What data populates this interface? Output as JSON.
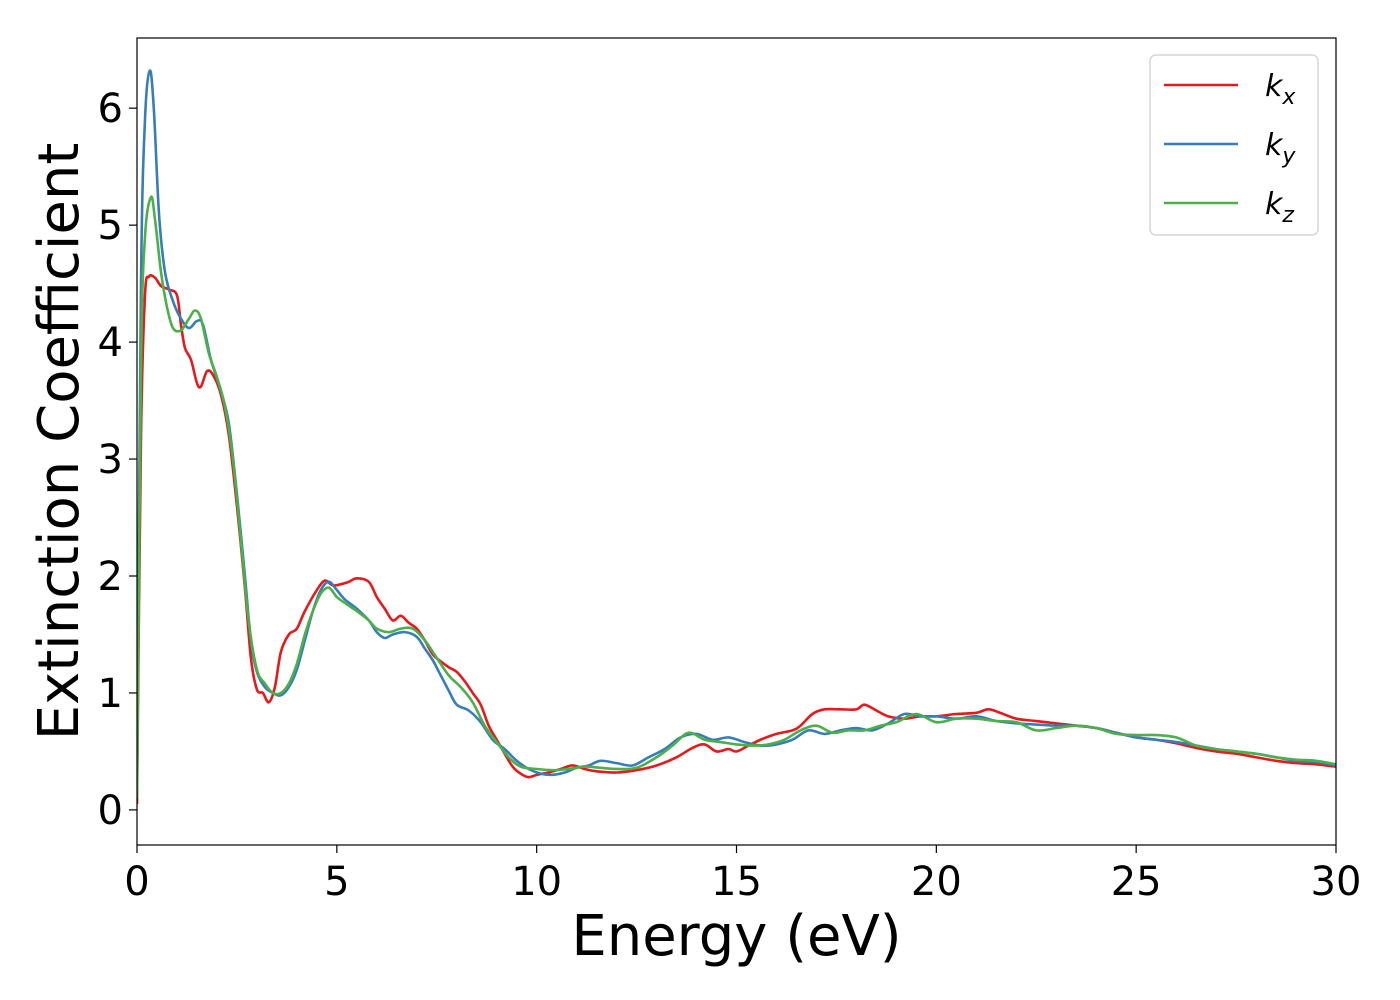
{
  "chart_data": {
    "type": "line",
    "title": "",
    "xlabel": "Energy (eV)",
    "ylabel": "Extinction Coefficient",
    "xlim": [
      0,
      30
    ],
    "ylim": [
      -0.3,
      6.6
    ],
    "xticks": [
      0,
      5,
      10,
      15,
      20,
      25,
      30
    ],
    "yticks": [
      0,
      1,
      2,
      3,
      4,
      5,
      6
    ],
    "grid": false,
    "legend_position": "top-right",
    "series": [
      {
        "name": "k",
        "subscript": "x",
        "color": "#e41a1c",
        "points": [
          [
            0,
            0.05
          ],
          [
            0.1,
            3.2
          ],
          [
            0.2,
            4.4
          ],
          [
            0.3,
            4.56
          ],
          [
            0.45,
            4.55
          ],
          [
            0.6,
            4.48
          ],
          [
            0.8,
            4.45
          ],
          [
            1.0,
            4.4
          ],
          [
            1.1,
            4.15
          ],
          [
            1.2,
            3.95
          ],
          [
            1.35,
            3.85
          ],
          [
            1.5,
            3.65
          ],
          [
            1.6,
            3.62
          ],
          [
            1.75,
            3.75
          ],
          [
            1.9,
            3.72
          ],
          [
            2.1,
            3.55
          ],
          [
            2.3,
            3.2
          ],
          [
            2.5,
            2.6
          ],
          [
            2.7,
            1.9
          ],
          [
            2.85,
            1.3
          ],
          [
            3.0,
            1.03
          ],
          [
            3.15,
            1.0
          ],
          [
            3.3,
            0.92
          ],
          [
            3.45,
            1.05
          ],
          [
            3.6,
            1.35
          ],
          [
            3.8,
            1.5
          ],
          [
            4.0,
            1.55
          ],
          [
            4.2,
            1.7
          ],
          [
            4.5,
            1.88
          ],
          [
            4.7,
            1.96
          ],
          [
            4.9,
            1.92
          ],
          [
            5.1,
            1.93
          ],
          [
            5.3,
            1.95
          ],
          [
            5.5,
            1.98
          ],
          [
            5.8,
            1.95
          ],
          [
            6.0,
            1.82
          ],
          [
            6.2,
            1.72
          ],
          [
            6.4,
            1.62
          ],
          [
            6.6,
            1.66
          ],
          [
            6.8,
            1.6
          ],
          [
            7.0,
            1.55
          ],
          [
            7.2,
            1.45
          ],
          [
            7.4,
            1.33
          ],
          [
            7.6,
            1.27
          ],
          [
            7.8,
            1.22
          ],
          [
            8.0,
            1.18
          ],
          [
            8.2,
            1.1
          ],
          [
            8.4,
            1.0
          ],
          [
            8.6,
            0.9
          ],
          [
            8.8,
            0.72
          ],
          [
            9.0,
            0.6
          ],
          [
            9.2,
            0.48
          ],
          [
            9.4,
            0.37
          ],
          [
            9.6,
            0.31
          ],
          [
            9.8,
            0.28
          ],
          [
            10.0,
            0.3
          ],
          [
            10.3,
            0.32
          ],
          [
            10.6,
            0.35
          ],
          [
            10.9,
            0.38
          ],
          [
            11.2,
            0.35
          ],
          [
            11.5,
            0.33
          ],
          [
            12.0,
            0.32
          ],
          [
            12.5,
            0.34
          ],
          [
            13.0,
            0.38
          ],
          [
            13.5,
            0.45
          ],
          [
            13.9,
            0.53
          ],
          [
            14.2,
            0.56
          ],
          [
            14.5,
            0.5
          ],
          [
            14.8,
            0.52
          ],
          [
            15.0,
            0.5
          ],
          [
            15.3,
            0.55
          ],
          [
            15.6,
            0.6
          ],
          [
            16.0,
            0.65
          ],
          [
            16.4,
            0.68
          ],
          [
            16.6,
            0.72
          ],
          [
            16.9,
            0.82
          ],
          [
            17.2,
            0.86
          ],
          [
            17.6,
            0.86
          ],
          [
            18.0,
            0.86
          ],
          [
            18.2,
            0.9
          ],
          [
            18.5,
            0.85
          ],
          [
            18.8,
            0.8
          ],
          [
            19.2,
            0.78
          ],
          [
            19.6,
            0.8
          ],
          [
            20.0,
            0.8
          ],
          [
            20.5,
            0.82
          ],
          [
            21.0,
            0.83
          ],
          [
            21.3,
            0.86
          ],
          [
            21.6,
            0.83
          ],
          [
            22.0,
            0.78
          ],
          [
            22.5,
            0.76
          ],
          [
            23.0,
            0.74
          ],
          [
            23.5,
            0.72
          ],
          [
            24.0,
            0.7
          ],
          [
            24.5,
            0.66
          ],
          [
            25.0,
            0.62
          ],
          [
            25.5,
            0.6
          ],
          [
            26.0,
            0.57
          ],
          [
            26.5,
            0.53
          ],
          [
            27.0,
            0.5
          ],
          [
            27.5,
            0.48
          ],
          [
            28.0,
            0.45
          ],
          [
            28.5,
            0.42
          ],
          [
            29.0,
            0.4
          ],
          [
            29.5,
            0.39
          ],
          [
            30.0,
            0.37
          ]
        ]
      },
      {
        "name": "k",
        "subscript": "y",
        "color": "#377eb8",
        "points": [
          [
            0,
            0.2
          ],
          [
            0.1,
            4.5
          ],
          [
            0.2,
            5.9
          ],
          [
            0.32,
            6.32
          ],
          [
            0.42,
            6.0
          ],
          [
            0.55,
            5.1
          ],
          [
            0.7,
            4.6
          ],
          [
            0.9,
            4.35
          ],
          [
            1.1,
            4.2
          ],
          [
            1.3,
            4.12
          ],
          [
            1.5,
            4.18
          ],
          [
            1.65,
            4.15
          ],
          [
            1.85,
            3.85
          ],
          [
            2.1,
            3.58
          ],
          [
            2.3,
            3.3
          ],
          [
            2.5,
            2.7
          ],
          [
            2.7,
            2.0
          ],
          [
            2.85,
            1.45
          ],
          [
            3.0,
            1.18
          ],
          [
            3.2,
            1.05
          ],
          [
            3.4,
            1.0
          ],
          [
            3.6,
            0.98
          ],
          [
            3.8,
            1.05
          ],
          [
            4.0,
            1.2
          ],
          [
            4.2,
            1.45
          ],
          [
            4.4,
            1.7
          ],
          [
            4.6,
            1.88
          ],
          [
            4.8,
            1.95
          ],
          [
            5.0,
            1.88
          ],
          [
            5.2,
            1.8
          ],
          [
            5.5,
            1.72
          ],
          [
            5.8,
            1.62
          ],
          [
            6.0,
            1.52
          ],
          [
            6.2,
            1.47
          ],
          [
            6.4,
            1.5
          ],
          [
            6.7,
            1.52
          ],
          [
            7.0,
            1.48
          ],
          [
            7.2,
            1.38
          ],
          [
            7.4,
            1.28
          ],
          [
            7.6,
            1.15
          ],
          [
            7.8,
            1.02
          ],
          [
            8.0,
            0.9
          ],
          [
            8.3,
            0.85
          ],
          [
            8.6,
            0.75
          ],
          [
            8.9,
            0.6
          ],
          [
            9.2,
            0.52
          ],
          [
            9.5,
            0.42
          ],
          [
            9.8,
            0.35
          ],
          [
            10.1,
            0.31
          ],
          [
            10.4,
            0.3
          ],
          [
            10.7,
            0.32
          ],
          [
            11.0,
            0.36
          ],
          [
            11.3,
            0.38
          ],
          [
            11.6,
            0.42
          ],
          [
            12.0,
            0.4
          ],
          [
            12.4,
            0.38
          ],
          [
            12.8,
            0.45
          ],
          [
            13.2,
            0.52
          ],
          [
            13.6,
            0.62
          ],
          [
            14.0,
            0.65
          ],
          [
            14.4,
            0.6
          ],
          [
            14.8,
            0.62
          ],
          [
            15.2,
            0.58
          ],
          [
            15.6,
            0.55
          ],
          [
            16.0,
            0.56
          ],
          [
            16.4,
            0.6
          ],
          [
            16.8,
            0.68
          ],
          [
            17.2,
            0.65
          ],
          [
            17.6,
            0.68
          ],
          [
            18.0,
            0.7
          ],
          [
            18.4,
            0.68
          ],
          [
            18.8,
            0.74
          ],
          [
            19.2,
            0.82
          ],
          [
            19.6,
            0.8
          ],
          [
            20.0,
            0.8
          ],
          [
            20.5,
            0.78
          ],
          [
            21.0,
            0.8
          ],
          [
            21.5,
            0.76
          ],
          [
            22.0,
            0.74
          ],
          [
            22.5,
            0.73
          ],
          [
            23.0,
            0.72
          ],
          [
            23.5,
            0.72
          ],
          [
            24.0,
            0.7
          ],
          [
            24.5,
            0.66
          ],
          [
            25.0,
            0.62
          ],
          [
            25.5,
            0.6
          ],
          [
            26.0,
            0.58
          ],
          [
            26.5,
            0.55
          ],
          [
            27.0,
            0.52
          ],
          [
            27.5,
            0.5
          ],
          [
            28.0,
            0.48
          ],
          [
            28.5,
            0.45
          ],
          [
            29.0,
            0.42
          ],
          [
            29.5,
            0.41
          ],
          [
            30.0,
            0.38
          ]
        ]
      },
      {
        "name": "k",
        "subscript": "z",
        "color": "#4daf4a",
        "points": [
          [
            0,
            0.1
          ],
          [
            0.1,
            3.8
          ],
          [
            0.2,
            4.9
          ],
          [
            0.35,
            5.24
          ],
          [
            0.45,
            5.05
          ],
          [
            0.6,
            4.6
          ],
          [
            0.75,
            4.3
          ],
          [
            0.9,
            4.12
          ],
          [
            1.1,
            4.1
          ],
          [
            1.3,
            4.2
          ],
          [
            1.45,
            4.27
          ],
          [
            1.6,
            4.2
          ],
          [
            1.8,
            3.9
          ],
          [
            2.0,
            3.7
          ],
          [
            2.2,
            3.45
          ],
          [
            2.4,
            3.0
          ],
          [
            2.6,
            2.3
          ],
          [
            2.8,
            1.6
          ],
          [
            3.0,
            1.2
          ],
          [
            3.2,
            1.08
          ],
          [
            3.4,
            1.0
          ],
          [
            3.6,
            1.0
          ],
          [
            3.8,
            1.08
          ],
          [
            4.0,
            1.25
          ],
          [
            4.2,
            1.5
          ],
          [
            4.4,
            1.7
          ],
          [
            4.6,
            1.85
          ],
          [
            4.8,
            1.9
          ],
          [
            5.0,
            1.82
          ],
          [
            5.2,
            1.77
          ],
          [
            5.5,
            1.7
          ],
          [
            5.8,
            1.62
          ],
          [
            6.0,
            1.55
          ],
          [
            6.3,
            1.52
          ],
          [
            6.6,
            1.55
          ],
          [
            6.9,
            1.55
          ],
          [
            7.2,
            1.45
          ],
          [
            7.5,
            1.3
          ],
          [
            7.8,
            1.15
          ],
          [
            8.1,
            1.05
          ],
          [
            8.4,
            0.92
          ],
          [
            8.7,
            0.72
          ],
          [
            9.0,
            0.58
          ],
          [
            9.3,
            0.45
          ],
          [
            9.6,
            0.37
          ],
          [
            10.0,
            0.35
          ],
          [
            10.4,
            0.34
          ],
          [
            10.8,
            0.35
          ],
          [
            11.2,
            0.37
          ],
          [
            11.6,
            0.36
          ],
          [
            12.0,
            0.35
          ],
          [
            12.5,
            0.36
          ],
          [
            13.0,
            0.45
          ],
          [
            13.4,
            0.55
          ],
          [
            13.8,
            0.66
          ],
          [
            14.2,
            0.6
          ],
          [
            14.6,
            0.58
          ],
          [
            15.0,
            0.56
          ],
          [
            15.4,
            0.55
          ],
          [
            15.8,
            0.56
          ],
          [
            16.2,
            0.6
          ],
          [
            16.6,
            0.68
          ],
          [
            17.0,
            0.72
          ],
          [
            17.4,
            0.66
          ],
          [
            17.8,
            0.68
          ],
          [
            18.2,
            0.68
          ],
          [
            18.6,
            0.72
          ],
          [
            19.0,
            0.75
          ],
          [
            19.5,
            0.82
          ],
          [
            20.0,
            0.75
          ],
          [
            20.5,
            0.78
          ],
          [
            21.0,
            0.78
          ],
          [
            21.5,
            0.76
          ],
          [
            22.0,
            0.75
          ],
          [
            22.5,
            0.68
          ],
          [
            23.0,
            0.7
          ],
          [
            23.5,
            0.72
          ],
          [
            24.0,
            0.7
          ],
          [
            24.5,
            0.65
          ],
          [
            25.0,
            0.64
          ],
          [
            25.5,
            0.64
          ],
          [
            26.0,
            0.62
          ],
          [
            26.5,
            0.55
          ],
          [
            27.0,
            0.52
          ],
          [
            27.5,
            0.5
          ],
          [
            28.0,
            0.48
          ],
          [
            28.5,
            0.45
          ],
          [
            29.0,
            0.43
          ],
          [
            29.5,
            0.42
          ],
          [
            30.0,
            0.39
          ]
        ]
      }
    ]
  }
}
